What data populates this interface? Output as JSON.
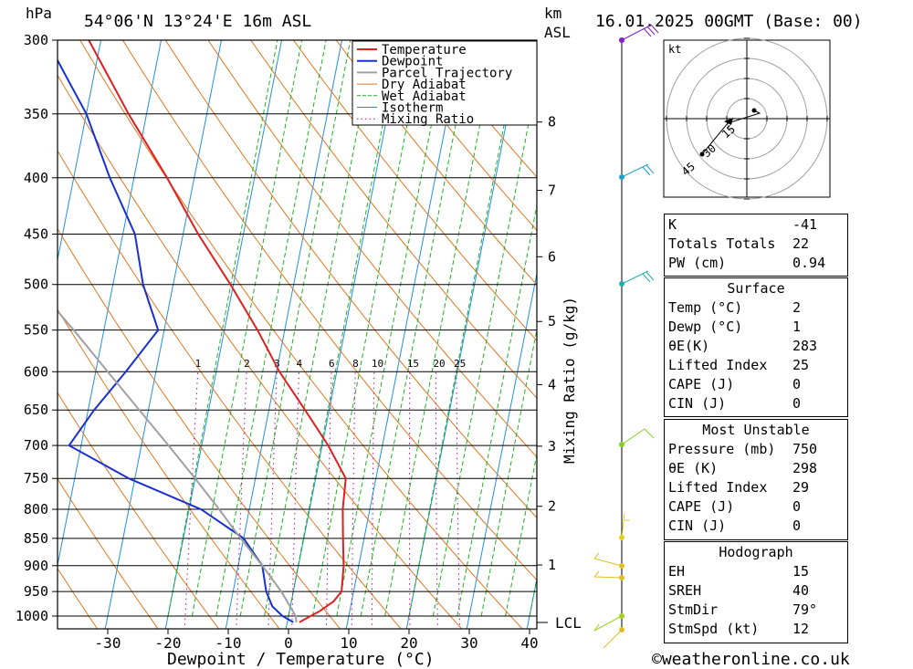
{
  "header": {
    "hpa_label": "hPa",
    "location": "54°06'N  13°24'E  16m  ASL",
    "km_label": "km",
    "asl_label": "ASL",
    "datetime": "16.01.2025  00GMT  (Base: 00)"
  },
  "footer": {
    "copyright": "©weatheronline.co.uk"
  },
  "chart_data": {
    "type": "line",
    "subtype": "skew-t log-p sounding",
    "xlabel": "Dewpoint / Temperature (°C)",
    "ylabel": "hPa",
    "right_axis_label": "km ASL",
    "mixing_axis_label": "Mixing Ratio (g/kg)",
    "xlim": [
      -40,
      40
    ],
    "ylim_hpa": [
      1000,
      300
    ],
    "x_ticks": [
      "-30",
      "-20",
      "-10",
      "0",
      "10",
      "20",
      "30",
      "40"
    ],
    "pressure_levels": [
      "300",
      "350",
      "400",
      "450",
      "500",
      "550",
      "600",
      "650",
      "700",
      "750",
      "800",
      "850",
      "900",
      "950",
      "1000"
    ],
    "km_ticks": [
      "8",
      "7",
      "6",
      "5",
      "4",
      "3",
      "2",
      "1"
    ],
    "lcl_label": "LCL",
    "mixing_ratio_labels": [
      "1",
      "2",
      "3",
      "4",
      "6",
      "8",
      "10",
      "15",
      "20",
      "25"
    ],
    "legend": [
      "Temperature",
      "Dewpoint",
      "Parcel Trajectory",
      "Dry Adiabat",
      "Wet Adiabat",
      "Isotherm",
      "Mixing Ratio"
    ],
    "colors": {
      "temperature": "#e02020",
      "dewpoint": "#1830d0",
      "parcel": "#a0a0a0",
      "dry_adiabat": "#e07820",
      "wet_adiabat": "#20b020",
      "isotherm": "#2090e0",
      "mixing_ratio": "#c000a0"
    },
    "series": [
      {
        "name": "Temperature",
        "points": [
          [
            1013,
            2
          ],
          [
            990,
            5
          ],
          [
            970,
            7
          ],
          [
            950,
            8
          ],
          [
            900,
            7.5
          ],
          [
            850,
            6.5
          ],
          [
            800,
            5.5
          ],
          [
            750,
            5
          ],
          [
            700,
            1
          ],
          [
            650,
            -4
          ],
          [
            600,
            -9.5
          ],
          [
            550,
            -14.5
          ],
          [
            500,
            -20.5
          ],
          [
            450,
            -27.5
          ],
          [
            400,
            -34.5
          ],
          [
            350,
            -43
          ],
          [
            300,
            -52
          ]
        ]
      },
      {
        "name": "Dewpoint",
        "points": [
          [
            1013,
            1
          ],
          [
            1000,
            -1
          ],
          [
            980,
            -3
          ],
          [
            950,
            -4.5
          ],
          [
            900,
            -6
          ],
          [
            850,
            -10
          ],
          [
            800,
            -18
          ],
          [
            750,
            -31
          ],
          [
            700,
            -42
          ],
          [
            650,
            -39
          ],
          [
            600,
            -35
          ],
          [
            550,
            -31
          ],
          [
            500,
            -35
          ],
          [
            450,
            -38
          ],
          [
            400,
            -44
          ],
          [
            350,
            -50
          ],
          [
            300,
            -59
          ]
        ]
      },
      {
        "name": "Parcel Trajectory",
        "points": [
          [
            1013,
            1.5
          ],
          [
            1000,
            1.2
          ],
          [
            950,
            -2
          ],
          [
            900,
            -6
          ],
          [
            850,
            -10.5
          ],
          [
            800,
            -15
          ],
          [
            750,
            -20
          ],
          [
            700,
            -25.5
          ],
          [
            650,
            -31.5
          ],
          [
            600,
            -38
          ],
          [
            550,
            -45
          ],
          [
            500,
            -53
          ],
          [
            450,
            -62
          ],
          [
            400,
            -71
          ],
          [
            350,
            -81
          ],
          [
            300,
            -92
          ]
        ]
      }
    ],
    "wind_barbs_pressures": [
      "300",
      "400",
      "500",
      "700",
      "850",
      "900",
      "925",
      "990",
      "1000"
    ],
    "hodograph": {
      "unit_label": "kt",
      "ring_labels": [
        "15",
        "30",
        "45"
      ]
    }
  },
  "indices": {
    "K": "-41",
    "Totals Totals": "22",
    "PW (cm)": "0.94"
  },
  "surface": {
    "title": "Surface",
    "rows": [
      [
        "Temp (°C)",
        "2"
      ],
      [
        "Dewp (°C)",
        "1"
      ],
      [
        "θE(K)",
        "283"
      ],
      [
        "Lifted Index",
        "25"
      ],
      [
        "CAPE (J)",
        "0"
      ],
      [
        "CIN (J)",
        "0"
      ]
    ]
  },
  "most_unstable": {
    "title": "Most Unstable",
    "rows": [
      [
        "Pressure (mb)",
        "750"
      ],
      [
        "θE (K)",
        "298"
      ],
      [
        "Lifted Index",
        "29"
      ],
      [
        "CAPE (J)",
        "0"
      ],
      [
        "CIN (J)",
        "0"
      ]
    ]
  },
  "hodograph_box": {
    "title": "Hodograph",
    "rows": [
      [
        "EH",
        "15"
      ],
      [
        "SREH",
        "40"
      ],
      [
        "StmDir",
        "79°"
      ],
      [
        "StmSpd (kt)",
        "12"
      ]
    ]
  }
}
